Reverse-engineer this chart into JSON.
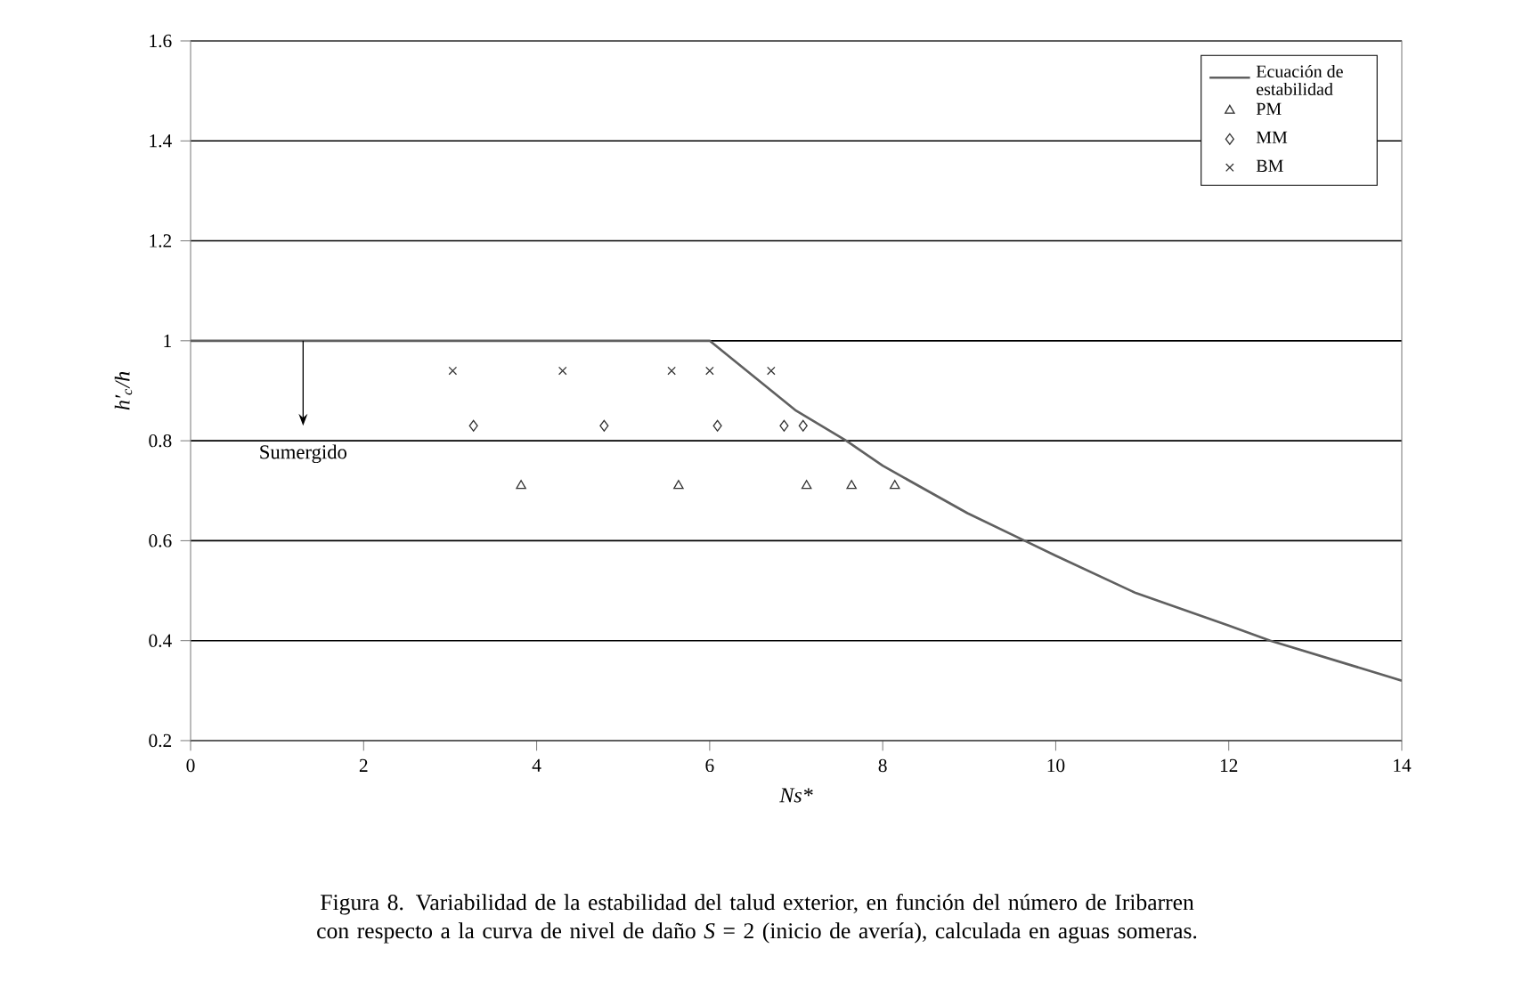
{
  "chart_data": {
    "type": "scatter",
    "xlabel": "Ns*",
    "ylabel": "h′$_{c}$/h",
    "xlim": [
      0,
      14
    ],
    "xticks": [
      0,
      2,
      4,
      6,
      8,
      10,
      12,
      14
    ],
    "ylim": [
      0.2,
      1.6
    ],
    "yticks": [
      0.2,
      0.4,
      0.6,
      0.8,
      1,
      1.2,
      1.4,
      1.6
    ],
    "grid": "y",
    "legend": "top right",
    "series": [
      {
        "name": "Ecuación de estabilidad",
        "type": "line",
        "color": "#606060",
        "marker": "none",
        "line_style": "solid",
        "x": [
          0,
          6.0,
          7.0,
          7.58,
          8.0,
          8.98,
          9.64,
          10.0,
          10.93,
          12.0,
          12.48,
          14.0
        ],
        "values": [
          1.0,
          1.0,
          0.86,
          0.8,
          0.75,
          0.655,
          0.6,
          0.57,
          0.495,
          0.43,
          0.4,
          0.32
        ]
      },
      {
        "name": "PM",
        "color": "#333333",
        "marker": "triangle",
        "x": [
          3.82,
          5.64,
          7.12,
          7.64,
          8.14
        ],
        "values": [
          0.71,
          0.71,
          0.71,
          0.71,
          0.71
        ]
      },
      {
        "name": "MM",
        "color": "#333333",
        "marker": "diamond",
        "x": [
          3.27,
          4.78,
          6.09,
          6.86,
          7.08
        ],
        "values": [
          0.83,
          0.83,
          0.83,
          0.83,
          0.83
        ]
      },
      {
        "name": "BM",
        "color": "#333333",
        "marker": "cross",
        "x": [
          3.03,
          4.3,
          5.56,
          6.0,
          6.71
        ],
        "values": [
          0.94,
          0.94,
          0.94,
          0.94,
          0.94
        ]
      }
    ],
    "annotations": [
      "Sumergido",
      "Figura 8. Variabilidad de la estabilidad del talud exterior, en función del número de Iribarren con respecto a la curva de nivel de daño *S* = 2 (inicio de avería), calculada en aguas someras."
    ]
  }
}
